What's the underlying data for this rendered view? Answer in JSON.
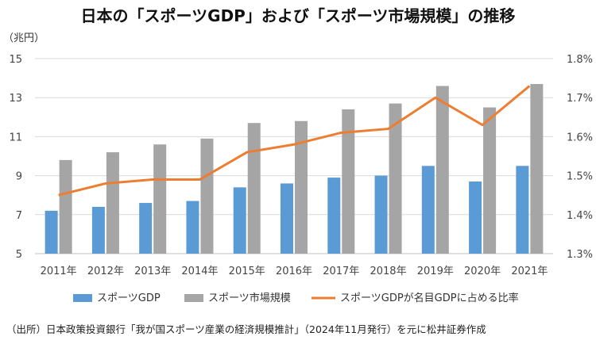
{
  "title": "日本の「スポーツGDP」および「スポーツ市場規模」の推移",
  "source_note": "（出所）日本政策投資銀行「我が国スポーツ産業の経済規模推計」（2024年11月発行）を元に松井証券作成",
  "chart_data": {
    "type": "bar",
    "categories": [
      "2011年",
      "2012年",
      "2013年",
      "2014年",
      "2015年",
      "2016年",
      "2017年",
      "2018年",
      "2019年",
      "2020年",
      "2021年"
    ],
    "y_left_unit": "（兆円）",
    "y_left_ticks": [
      "15",
      "13",
      "11",
      "9",
      "7",
      "5"
    ],
    "y_left_range": [
      5,
      15
    ],
    "y_right_ticks": [
      "1.8%",
      "1.7%",
      "1.6%",
      "1.5%",
      "1.4%",
      "1.3%"
    ],
    "y_right_range": [
      1.3,
      1.8
    ],
    "grid": true,
    "legend_position": "bottom",
    "series": [
      {
        "name": "スポーツGDP",
        "type": "bar",
        "axis": "left",
        "color": "#5B9BD5",
        "values": [
          7.2,
          7.4,
          7.6,
          7.7,
          8.4,
          8.6,
          8.9,
          9.0,
          9.5,
          8.7,
          9.5
        ]
      },
      {
        "name": "スポーツ市場規模",
        "type": "bar",
        "axis": "left",
        "color": "#A5A5A5",
        "values": [
          9.8,
          10.2,
          10.6,
          10.9,
          11.7,
          11.8,
          12.4,
          12.7,
          13.6,
          12.5,
          13.7
        ]
      },
      {
        "name": "スポーツGDPが名目GDPに占める比率",
        "type": "line",
        "axis": "right",
        "color": "#ED7D31",
        "values": [
          1.45,
          1.48,
          1.49,
          1.49,
          1.56,
          1.58,
          1.61,
          1.62,
          1.7,
          1.63,
          1.73
        ]
      }
    ]
  }
}
